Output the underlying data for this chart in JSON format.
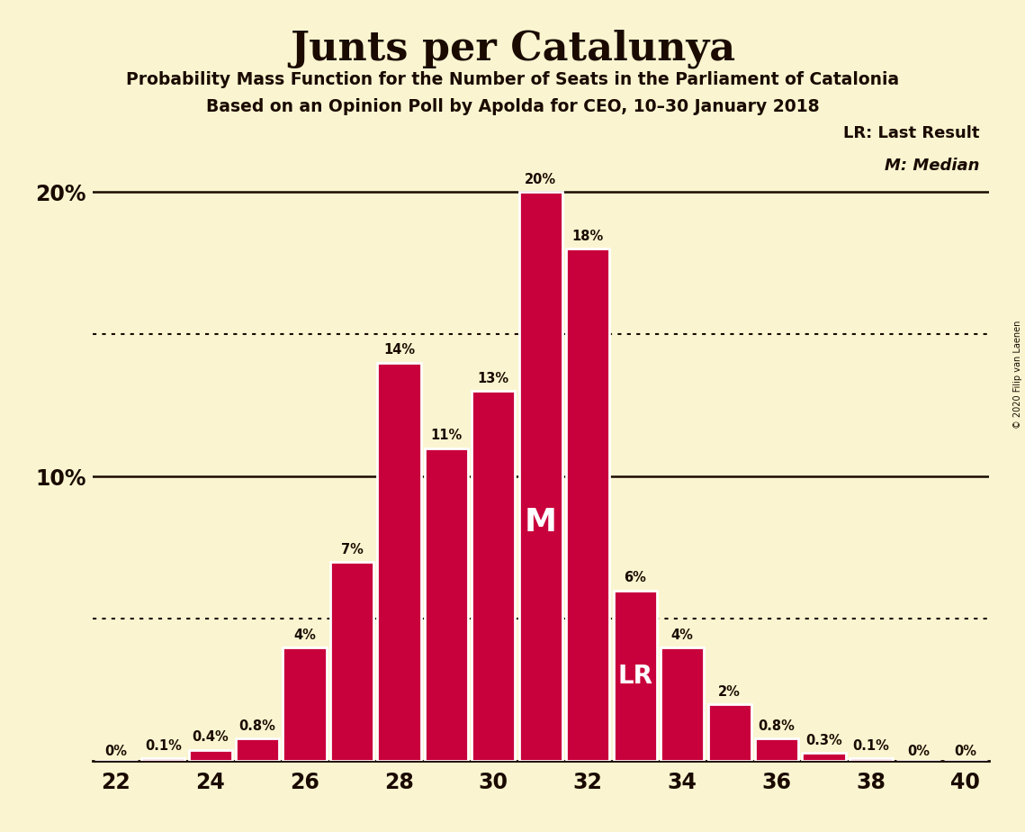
{
  "title": "Junts per Catalunya",
  "subtitle1": "Probability Mass Function for the Number of Seats in the Parliament of Catalonia",
  "subtitle2": "Based on an Opinion Poll by Apolda for CEO, 10–30 January 2018",
  "copyright": "© 2020 Filip van Laenen",
  "seats": [
    22,
    23,
    24,
    25,
    26,
    27,
    28,
    29,
    30,
    31,
    32,
    33,
    34,
    35,
    36,
    37,
    38,
    39,
    40
  ],
  "probabilities": [
    0.0,
    0.001,
    0.004,
    0.008,
    0.04,
    0.07,
    0.14,
    0.11,
    0.13,
    0.2,
    0.18,
    0.06,
    0.04,
    0.02,
    0.008,
    0.003,
    0.001,
    0.0,
    0.0
  ],
  "labels": [
    "0%",
    "0.1%",
    "0.4%",
    "0.8%",
    "4%",
    "7%",
    "14%",
    "11%",
    "13%",
    "20%",
    "18%",
    "6%",
    "4%",
    "2%",
    "0.8%",
    "0.3%",
    "0.1%",
    "0%",
    "0%"
  ],
  "bar_color": "#C8003C",
  "background_color": "#FAF5D0",
  "text_color": "#1A0A00",
  "median_seat": 31,
  "last_result_seat": 33,
  "dotted_line_y1": 0.15,
  "dotted_line_y2": 0.05,
  "ylim": [
    0,
    0.225
  ],
  "xlim": [
    21.5,
    40.5
  ],
  "yticks": [
    0.0,
    0.1,
    0.2
  ],
  "ytick_labels": [
    "",
    "10%",
    "20%"
  ],
  "xticks": [
    22,
    24,
    26,
    28,
    30,
    32,
    34,
    36,
    38,
    40
  ]
}
